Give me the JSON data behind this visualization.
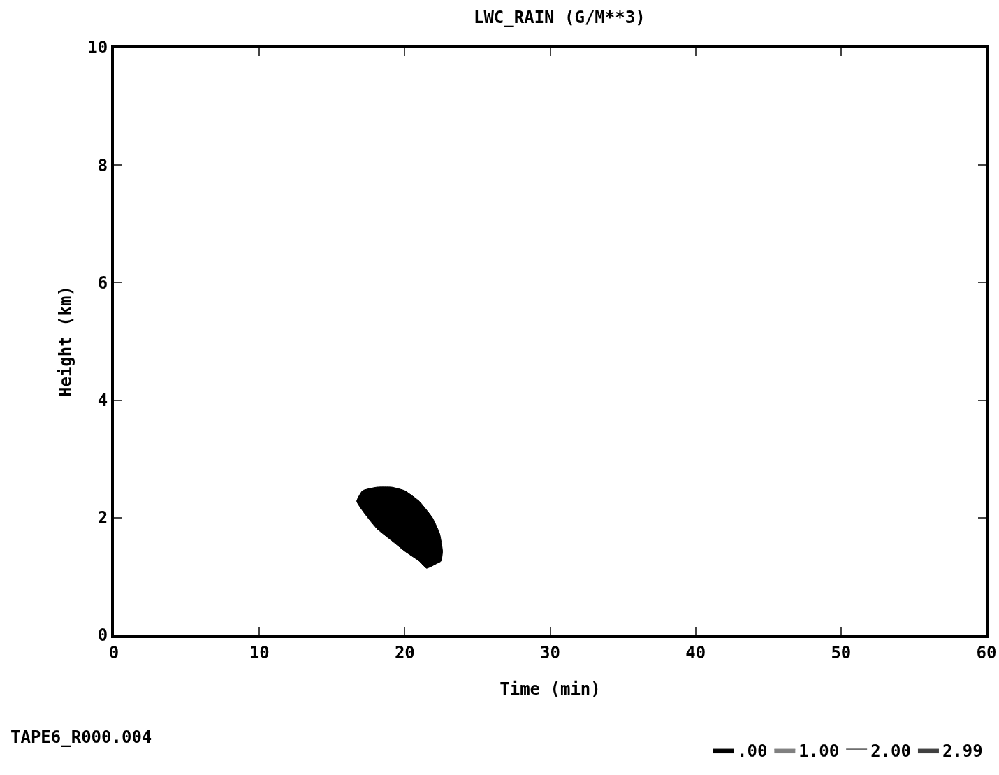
{
  "chart_data": {
    "type": "area",
    "title": "LWC_RAIN (G/M**3)",
    "xlabel": "Time (min)",
    "ylabel": "Height (km)",
    "xlim": [
      0,
      60
    ],
    "xticks": [
      0,
      10,
      20,
      30,
      40,
      50,
      60
    ],
    "ylim": [
      0,
      10
    ],
    "yticks": [
      0,
      2,
      4,
      6,
      8,
      10
    ],
    "grid": false,
    "legend": "bottom right",
    "series": [
      {
        "name": ".00",
        "color": "#000000",
        "x": [
          16.7,
          17.1,
          18.1,
          19.1,
          20.0,
          21.0,
          21.9,
          22.4,
          22.6,
          22.5,
          22.2,
          21.5,
          21.0,
          20.0,
          19.1,
          18.1,
          17.4,
          16.7
        ],
        "values": [
          2.28,
          2.46,
          2.52,
          2.52,
          2.46,
          2.28,
          2.0,
          1.73,
          1.43,
          1.26,
          1.22,
          1.14,
          1.26,
          1.43,
          1.61,
          1.81,
          2.02,
          2.28
        ]
      },
      {
        "name": "1.00",
        "color": "#808080",
        "x": [
          null
        ],
        "values": [
          null
        ]
      },
      {
        "name": "2.00",
        "x": [
          null
        ],
        "values": [
          null
        ]
      },
      {
        "name": "2.99",
        "color": "#404040",
        "x": [
          null
        ],
        "values": [
          null
        ]
      }
    ],
    "annotations": [
      "TAPE6_R000.004"
    ]
  }
}
